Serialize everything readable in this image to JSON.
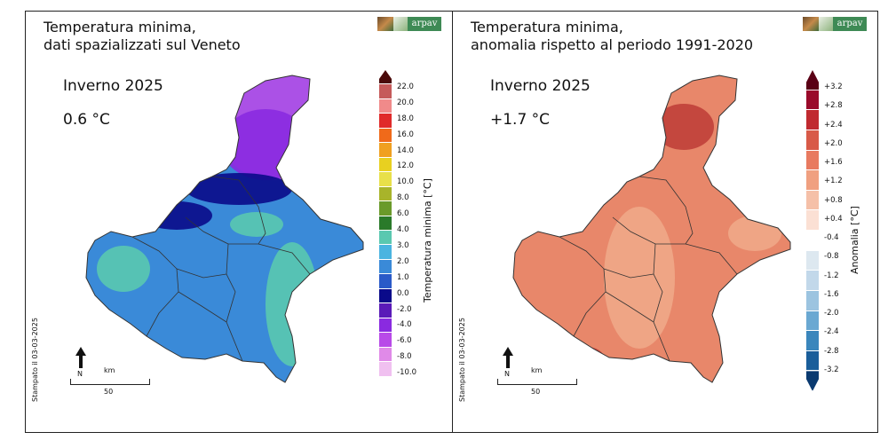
{
  "logo_text": "arpav",
  "left": {
    "title": "Temperatura minima,\ndati spazializzati sul Veneto",
    "season": "Inverno 2025",
    "value": "0.6 °C",
    "colorbar_label": "Temperatura minima [°C]",
    "stamp": "Stampato il 03-03-2025",
    "north": "N",
    "scale_unit": "km",
    "scale_value": "50",
    "ticks": [
      "22.0",
      "20.0",
      "18.0",
      "16.0",
      "14.0",
      "12.0",
      "10.0",
      "8.0",
      "6.0",
      "4.0",
      "3.0",
      "2.0",
      "1.0",
      "0.0",
      "-2.0",
      "-4.0",
      "-6.0",
      "-8.0",
      "-10.0"
    ],
    "colors": [
      "#4a0a0a",
      "#c55a5a",
      "#f08a8a",
      "#e02a2a",
      "#f06a1a",
      "#f0a020",
      "#e8d020",
      "#e8e04a",
      "#a8b42a",
      "#6a9a2a",
      "#2a7a2a",
      "#5ac8b0",
      "#4ab4e0",
      "#3a8ad8",
      "#2a5ac8",
      "#0a0a8a",
      "#5a1ab8",
      "#8a2ae0",
      "#b84ae8",
      "#e08ae8",
      "#f0c0f0",
      "#ffffff"
    ],
    "map_colors": {
      "bg": "#3a8ad8",
      "mid": "#5ac8b0",
      "dark": "#0a0a8a",
      "purple": "#8a2ae0",
      "light_purple": "#b84ae8"
    }
  },
  "right": {
    "title": "Temperatura minima,\nanomalia rispetto al periodo 1991-2020",
    "season": "Inverno 2025",
    "value": "+1.7 °C",
    "colorbar_label": "Anomalia [°C]",
    "stamp": "Stampato il 03-03-2025",
    "north": "N",
    "scale_unit": "km",
    "scale_value": "50",
    "ticks": [
      "+3.2",
      "+2.8",
      "+2.4",
      "+2.0",
      "+1.6",
      "+1.2",
      "+0.8",
      "+0.4",
      "-0.4",
      "-0.8",
      "-1.2",
      "-1.6",
      "-2.0",
      "-2.4",
      "-2.8",
      "-3.2"
    ],
    "colors": [
      "#5a0015",
      "#9a0a2a",
      "#c02a30",
      "#d85a48",
      "#e87a60",
      "#f0a080",
      "#f5c0a8",
      "#fbe0d4",
      "#ffffff",
      "#dde8f0",
      "#c2d8ea",
      "#9cc4e0",
      "#6aa8d2",
      "#3a86bc",
      "#1a5e9a",
      "#0a3a70"
    ],
    "map_colors": {
      "bg": "#e8876a",
      "mid": "#f0a888",
      "dark": "#c0403a"
    }
  }
}
